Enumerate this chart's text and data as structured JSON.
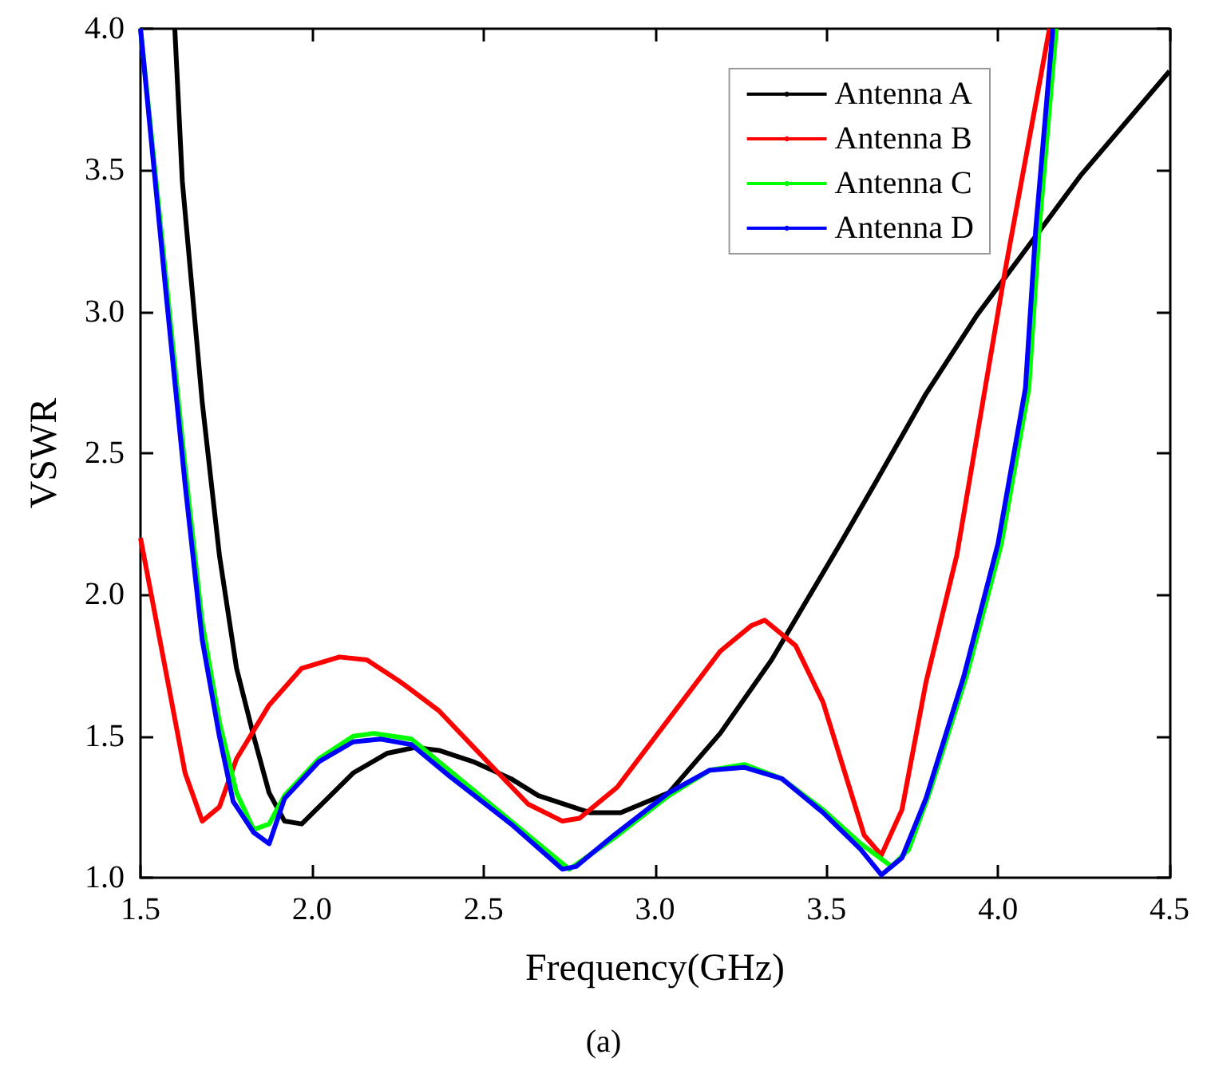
{
  "chart_data": {
    "type": "line",
    "xlabel": "Frequency(GHz)",
    "ylabel": "VSWR",
    "annotations": [
      "(a)"
    ],
    "xlim": [
      1.5,
      4.5
    ],
    "ylim": [
      1,
      4
    ],
    "xticks": [
      1.5,
      {
        "value": 2,
        "label": "2.0"
      },
      2.5,
      {
        "value": 3,
        "label": "3.0"
      },
      3.5,
      {
        "value": 4,
        "label": "4.0"
      },
      4.5
    ],
    "yticks": [
      {
        "value": 1,
        "label": "1.0"
      },
      1.5,
      {
        "value": 2,
        "label": "2.0"
      },
      2.5,
      {
        "value": 3,
        "label": "3.0"
      },
      3.5,
      {
        "value": 4,
        "label": "4.0"
      }
    ],
    "grid": false,
    "legend": "top right",
    "marker": "none",
    "line_style": "solid",
    "series": [
      {
        "name": "Antenna A",
        "color": "#000000",
        "x": [
          1.6,
          1.622,
          1.68,
          1.73,
          1.78,
          1.83,
          1.875,
          1.92,
          1.97,
          2.02,
          2.12,
          2.22,
          2.3,
          2.37,
          2.47,
          2.58,
          2.66,
          2.81,
          2.9,
          3.04,
          3.19,
          3.34,
          3.54,
          3.64,
          3.79,
          3.94,
          4.02,
          4.24,
          4.5
        ],
        "values": [
          4.0,
          3.46,
          2.68,
          2.14,
          1.74,
          1.5,
          1.3,
          1.2,
          1.19,
          1.25,
          1.37,
          1.44,
          1.46,
          1.45,
          1.41,
          1.35,
          1.29,
          1.23,
          1.23,
          1.3,
          1.51,
          1.77,
          2.18,
          2.39,
          2.71,
          2.99,
          3.12,
          3.48,
          3.85
        ]
      },
      {
        "name": "Antenna B",
        "color": "#ff0000",
        "x": [
          1.5,
          1.58,
          1.63,
          1.68,
          1.73,
          1.78,
          1.875,
          1.97,
          2.08,
          2.16,
          2.26,
          2.37,
          2.48,
          2.63,
          2.73,
          2.78,
          2.89,
          3.04,
          3.19,
          3.28,
          3.32,
          3.41,
          3.49,
          3.61,
          3.66,
          3.72,
          3.79,
          3.88,
          4.02,
          4.15
        ],
        "values": [
          2.2,
          1.69,
          1.37,
          1.2,
          1.25,
          1.42,
          1.61,
          1.74,
          1.78,
          1.77,
          1.69,
          1.59,
          1.45,
          1.26,
          1.2,
          1.21,
          1.32,
          1.56,
          1.8,
          1.89,
          1.91,
          1.82,
          1.62,
          1.15,
          1.08,
          1.24,
          1.69,
          2.14,
          3.14,
          4.0
        ]
      },
      {
        "name": "Antenna C",
        "color": "#00ff00",
        "x": [
          1.5,
          1.574,
          1.63,
          1.68,
          1.73,
          1.78,
          1.83,
          1.875,
          1.92,
          2.02,
          2.12,
          2.18,
          2.29,
          2.4,
          2.58,
          2.75,
          2.88,
          3.04,
          3.16,
          3.26,
          3.37,
          3.49,
          3.6,
          3.69,
          3.74,
          3.8,
          3.91,
          4.01,
          4.09,
          4.12,
          4.17
        ],
        "values": [
          4.0,
          3.12,
          2.45,
          1.9,
          1.55,
          1.3,
          1.17,
          1.19,
          1.29,
          1.42,
          1.5,
          1.51,
          1.49,
          1.38,
          1.2,
          1.03,
          1.14,
          1.29,
          1.38,
          1.4,
          1.35,
          1.24,
          1.12,
          1.04,
          1.1,
          1.3,
          1.72,
          2.18,
          2.73,
          3.29,
          4.0
        ]
      },
      {
        "name": "Antenna D",
        "color": "#0000ff",
        "x": [
          1.5,
          1.574,
          1.63,
          1.68,
          1.73,
          1.77,
          1.83,
          1.875,
          1.92,
          2.02,
          2.12,
          2.2,
          2.29,
          2.4,
          2.58,
          2.73,
          2.77,
          2.88,
          3.04,
          3.16,
          3.26,
          3.37,
          3.49,
          3.6,
          3.66,
          3.72,
          3.79,
          3.9,
          4.0,
          4.08,
          4.11,
          4.16
        ],
        "values": [
          4.0,
          3.07,
          2.39,
          1.84,
          1.5,
          1.27,
          1.16,
          1.12,
          1.28,
          1.41,
          1.48,
          1.49,
          1.47,
          1.36,
          1.19,
          1.03,
          1.04,
          1.15,
          1.3,
          1.38,
          1.39,
          1.35,
          1.23,
          1.1,
          1.01,
          1.07,
          1.28,
          1.71,
          2.18,
          2.73,
          3.29,
          4.0
        ]
      }
    ]
  }
}
